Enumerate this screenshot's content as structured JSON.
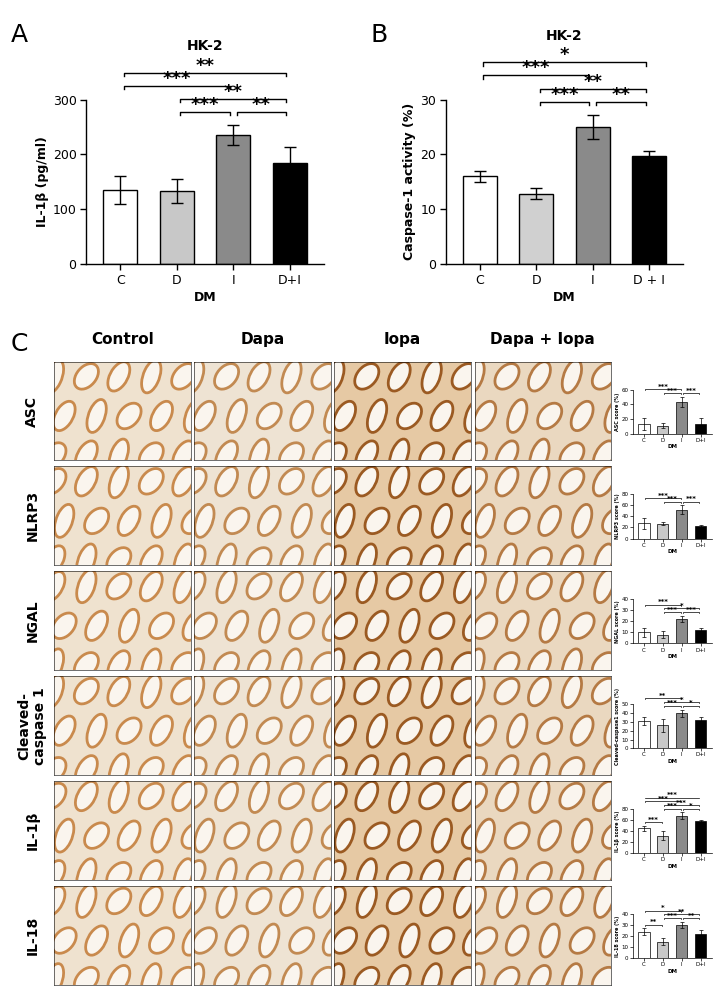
{
  "chart_data": [
    {
      "type": "bar",
      "title": "HK-2",
      "x_label": "DM",
      "y_label": "IL-1β (pg/ml)",
      "categories": [
        "C",
        "D",
        "I",
        "D+I"
      ],
      "values": [
        135,
        133,
        235,
        185
      ],
      "errors": [
        25,
        22,
        18,
        28
      ],
      "colors": [
        "#ffffff",
        "#c8c8c8",
        "#8a8a8a",
        "#000000"
      ],
      "ylim": [
        0,
        300
      ],
      "yticks": [
        0,
        100,
        200,
        300
      ],
      "significance": [
        {
          "pair": [
            0,
            3
          ],
          "label": "**"
        },
        {
          "pair": [
            1,
            3
          ],
          "label": "**"
        },
        {
          "pair": [
            0,
            2
          ],
          "label": "***"
        },
        {
          "pair": [
            1,
            2
          ],
          "label": "***"
        },
        {
          "pair": [
            2,
            3
          ],
          "label": "**"
        }
      ]
    },
    {
      "type": "bar",
      "title": "HK-2",
      "x_label": "DM",
      "y_label": "Caspase-1 activity (%)",
      "categories": [
        "C",
        "D",
        "I",
        "D + I"
      ],
      "values": [
        16,
        12.8,
        25,
        19.7
      ],
      "errors": [
        1,
        1,
        2.2,
        1
      ],
      "colors": [
        "#ffffff",
        "#d0d0d0",
        "#8a8a8a",
        "#000000"
      ],
      "ylim": [
        0,
        30
      ],
      "yticks": [
        0,
        10,
        20,
        30
      ],
      "significance": [
        {
          "pair": [
            0,
            3
          ],
          "label": "*"
        },
        {
          "pair": [
            1,
            3
          ],
          "label": "**"
        },
        {
          "pair": [
            0,
            2
          ],
          "label": "***"
        },
        {
          "pair": [
            1,
            2
          ],
          "label": "***"
        },
        {
          "pair": [
            2,
            3
          ],
          "label": "**"
        }
      ]
    },
    {
      "type": "bar",
      "x_label": "DM",
      "y_label": "ASC score (%)",
      "categories": [
        "C",
        "D",
        "I",
        "D+I"
      ],
      "values": [
        13,
        11,
        43,
        13
      ],
      "errors": [
        8,
        4,
        7,
        8
      ],
      "colors": [
        "#ffffff",
        "#c8c8c8",
        "#8a8a8a",
        "#000000"
      ],
      "ylim": [
        0,
        60
      ],
      "yticks": [
        0,
        20,
        40,
        60
      ],
      "significance": [
        {
          "pair": [
            0,
            2
          ],
          "label": "***"
        },
        {
          "pair": [
            1,
            2
          ],
          "label": "***"
        },
        {
          "pair": [
            2,
            3
          ],
          "label": "***"
        }
      ]
    },
    {
      "type": "bar",
      "x_label": "DM",
      "y_label": "NLRP3 score (%)",
      "categories": [
        "C",
        "D",
        "I",
        "D+I"
      ],
      "values": [
        28,
        27,
        52,
        22
      ],
      "errors": [
        10,
        3,
        8,
        2
      ],
      "colors": [
        "#ffffff",
        "#c8c8c8",
        "#8a8a8a",
        "#000000"
      ],
      "ylim": [
        0,
        80
      ],
      "yticks": [
        0,
        20,
        40,
        60,
        80
      ],
      "significance": [
        {
          "pair": [
            0,
            2
          ],
          "label": "***"
        },
        {
          "pair": [
            1,
            2
          ],
          "label": "***"
        },
        {
          "pair": [
            2,
            3
          ],
          "label": "***"
        }
      ]
    },
    {
      "type": "bar",
      "x_label": "DM",
      "y_label": "NGAL score (%)",
      "categories": [
        "C",
        "D",
        "I",
        "D+I"
      ],
      "values": [
        10,
        8,
        22,
        12
      ],
      "errors": [
        4,
        3,
        3,
        2
      ],
      "colors": [
        "#ffffff",
        "#c8c8c8",
        "#8a8a8a",
        "#000000"
      ],
      "ylim": [
        0,
        40
      ],
      "yticks": [
        0,
        10,
        20,
        30,
        40
      ],
      "significance": [
        {
          "pair": [
            1,
            3
          ],
          "label": "*"
        },
        {
          "pair": [
            0,
            2
          ],
          "label": "***"
        },
        {
          "pair": [
            1,
            2
          ],
          "label": "***"
        },
        {
          "pair": [
            2,
            3
          ],
          "label": "***"
        }
      ]
    },
    {
      "type": "bar",
      "x_label": "DM",
      "y_label": "Cleaved-caspase1 score (%)",
      "categories": [
        "C",
        "D",
        "I",
        "D+I"
      ],
      "values": [
        31,
        26,
        40,
        32
      ],
      "errors": [
        5,
        7,
        4,
        3
      ],
      "colors": [
        "#ffffff",
        "#c8c8c8",
        "#8a8a8a",
        "#000000"
      ],
      "ylim": [
        0,
        50
      ],
      "yticks": [
        0,
        10,
        20,
        30,
        40,
        50
      ],
      "significance": [
        {
          "pair": [
            1,
            3
          ],
          "label": "*"
        },
        {
          "pair": [
            0,
            2
          ],
          "label": "**"
        },
        {
          "pair": [
            1,
            2
          ],
          "label": "***"
        },
        {
          "pair": [
            2,
            3
          ],
          "label": "*"
        }
      ]
    },
    {
      "type": "bar",
      "x_label": "DM",
      "y_label": "IL-1β score (%)",
      "categories": [
        "C",
        "D",
        "I",
        "D+I"
      ],
      "values": [
        45,
        32,
        68,
        58
      ],
      "errors": [
        5,
        8,
        6,
        3
      ],
      "colors": [
        "#ffffff",
        "#c8c8c8",
        "#8a8a8a",
        "#000000"
      ],
      "ylim": [
        0,
        80
      ],
      "yticks": [
        0,
        20,
        40,
        60,
        80
      ],
      "significance": [
        {
          "pair": [
            0,
            3
          ],
          "label": "***"
        },
        {
          "pair": [
            1,
            3
          ],
          "label": "***"
        },
        {
          "pair": [
            0,
            1
          ],
          "label": "***"
        },
        {
          "pair": [
            0,
            2
          ],
          "label": "***"
        },
        {
          "pair": [
            1,
            2
          ],
          "label": "***"
        },
        {
          "pair": [
            2,
            3
          ],
          "label": "*"
        }
      ]
    },
    {
      "type": "bar",
      "x_label": "DM",
      "y_label": "IL-18 score (%)",
      "categories": [
        "C",
        "D",
        "I",
        "D+I"
      ],
      "values": [
        24,
        15,
        30,
        22
      ],
      "errors": [
        3,
        3,
        3,
        4
      ],
      "colors": [
        "#ffffff",
        "#c8c8c8",
        "#8a8a8a",
        "#000000"
      ],
      "ylim": [
        0,
        40
      ],
      "yticks": [
        0,
        10,
        20,
        30,
        40
      ],
      "significance": [
        {
          "pair": [
            1,
            3
          ],
          "label": "**"
        },
        {
          "pair": [
            0,
            2
          ],
          "label": "*"
        },
        {
          "pair": [
            0,
            1
          ],
          "label": "**"
        },
        {
          "pair": [
            1,
            2
          ],
          "label": "***"
        },
        {
          "pair": [
            2,
            3
          ],
          "label": "**"
        }
      ]
    }
  ],
  "figure": {
    "panel_labels": [
      "A",
      "B",
      "C"
    ],
    "columns": [
      "Control",
      "Dapa",
      "Iopa",
      "Dapa + Iopa"
    ],
    "rows": [
      "ASC",
      "NLRP3",
      "NGAL",
      "Cleaved-\ncaspase 1",
      "IL-1β",
      "IL-18"
    ]
  }
}
